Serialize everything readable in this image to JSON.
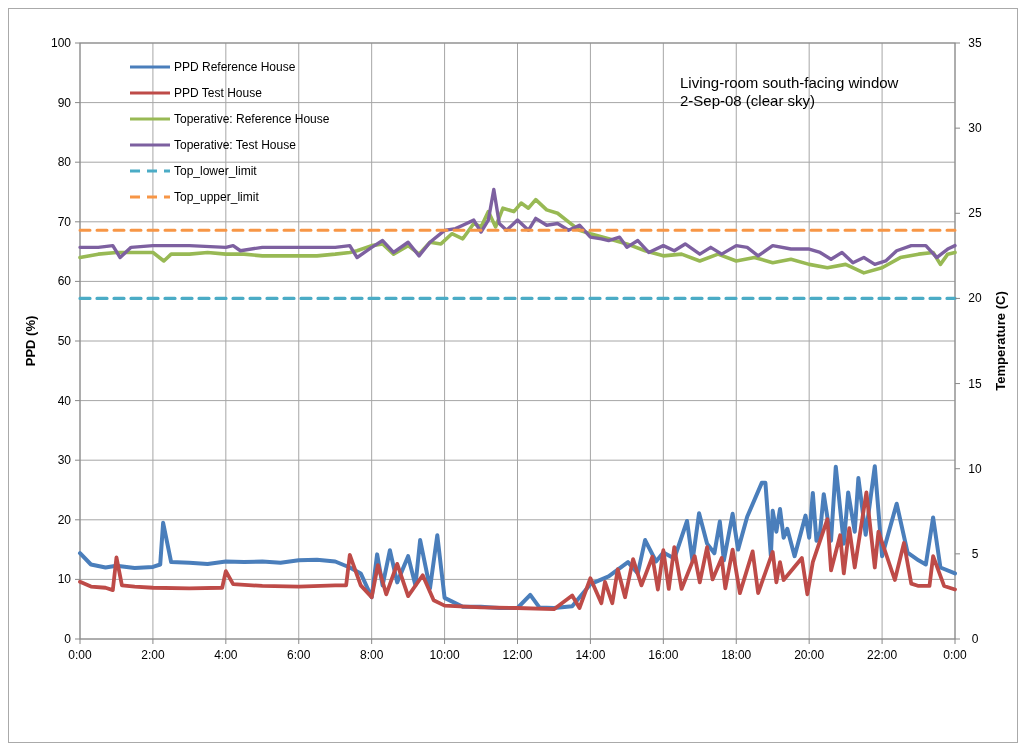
{
  "chart_data": {
    "type": "line",
    "title": "Living-room south-facing window",
    "subtitle": "2-Sep-08 (clear sky)",
    "ylabel": "PPD (%)",
    "y2label": "Temperature (C)",
    "xlim": [
      0,
      24
    ],
    "xticks": [
      {
        "value": 0,
        "label": "0:00"
      },
      {
        "value": 2,
        "label": "2:00"
      },
      {
        "value": 4,
        "label": "4:00"
      },
      {
        "value": 6,
        "label": "6:00"
      },
      {
        "value": 8,
        "label": "8:00"
      },
      {
        "value": 10,
        "label": "10:00"
      },
      {
        "value": 12,
        "label": "12:00"
      },
      {
        "value": 14,
        "label": "14:00"
      },
      {
        "value": 16,
        "label": "16:00"
      },
      {
        "value": 18,
        "label": "18:00"
      },
      {
        "value": 20,
        "label": "20:00"
      },
      {
        "value": 22,
        "label": "22:00"
      },
      {
        "value": 24,
        "label": "0:00"
      }
    ],
    "ylim": [
      0,
      100
    ],
    "yticks": [
      0,
      10,
      20,
      30,
      40,
      50,
      60,
      70,
      80,
      90,
      100
    ],
    "y2lim": [
      0,
      35
    ],
    "y2ticks": [
      0,
      5,
      10,
      15,
      20,
      25,
      30,
      35
    ],
    "grid": true,
    "legend": "top left",
    "marker": "none",
    "series": [
      {
        "name": "PPD Reference House",
        "color": "#4a7ebb",
        "x": [
          0,
          0.3,
          0.7,
          1,
          1.5,
          2,
          2.2,
          2.28,
          2.5,
          3,
          3.5,
          4,
          4.5,
          5,
          5.5,
          6,
          6.5,
          7,
          7.4,
          7.7,
          8,
          8.15,
          8.3,
          8.5,
          8.7,
          9,
          9.2,
          9.33,
          9.6,
          9.8,
          10,
          10.5,
          11,
          11.5,
          12,
          12.35,
          12.6,
          13,
          13.5,
          14,
          14.5,
          15.03,
          15.3,
          15.5,
          15.8,
          16,
          16.3,
          16.65,
          16.8,
          16.98,
          17.2,
          17.4,
          17.55,
          17.66,
          17.9,
          18.05,
          18.3,
          18.7,
          18.8,
          18.95,
          19,
          19.1,
          19.2,
          19.3,
          19.4,
          19.6,
          19.9,
          20,
          20.1,
          20.2,
          20.3,
          20.4,
          20.6,
          20.73,
          20.95,
          21.07,
          21.25,
          21.35,
          21.55,
          21.8,
          22,
          22.4,
          22.7,
          23,
          23.2,
          23.4,
          23.6,
          24
        ],
        "values": [
          14.4,
          12.5,
          12.0,
          12.3,
          11.9,
          12.1,
          12.5,
          19.5,
          12.9,
          12.8,
          12.6,
          13.0,
          12.9,
          13.0,
          12.8,
          13.2,
          13.3,
          13.0,
          12.0,
          11.0,
          7.0,
          14.2,
          9.0,
          14.9,
          9.5,
          13.9,
          9.0,
          16.6,
          8.5,
          17.4,
          6.9,
          5.4,
          5.4,
          5.2,
          5.2,
          7.4,
          5.3,
          5.2,
          5.5,
          9.2,
          10.5,
          12.9,
          11.0,
          16.6,
          13.0,
          14.5,
          13.5,
          19.8,
          13.1,
          21.1,
          16.0,
          14.4,
          19.7,
          13.2,
          21.0,
          15.0,
          20.5,
          26.2,
          26.2,
          13.9,
          21.5,
          18.0,
          21.8,
          17.0,
          18.5,
          13.9,
          20.7,
          17.0,
          24.5,
          16.5,
          18.0,
          24.3,
          16.5,
          28.9,
          16.0,
          24.6,
          18.0,
          27.0,
          17.5,
          29.0,
          13.9,
          22.7,
          14.5,
          13.2,
          12.5,
          20.4,
          12.0,
          11.0
        ]
      },
      {
        "name": "PPD Test House",
        "color": "#be4b48",
        "x": [
          0,
          0.3,
          0.7,
          0.9,
          1.0,
          1.15,
          1.5,
          2,
          3,
          3.9,
          4.0,
          4.2,
          5,
          6,
          7,
          7.3,
          7.4,
          7.7,
          8,
          8.17,
          8.4,
          8.7,
          9.0,
          9.4,
          9.7,
          10,
          11,
          12,
          13,
          13.5,
          13.7,
          14.0,
          14.3,
          14.4,
          14.6,
          14.75,
          14.95,
          15.17,
          15.4,
          15.7,
          15.85,
          16.0,
          16.15,
          16.3,
          16.5,
          16.86,
          17.0,
          17.2,
          17.35,
          17.6,
          17.7,
          17.9,
          18.1,
          18.45,
          18.6,
          19.0,
          19.1,
          19.2,
          19.3,
          19.8,
          19.95,
          20.1,
          20.5,
          20.6,
          20.85,
          20.95,
          21.1,
          21.25,
          21.57,
          21.8,
          21.9,
          22.35,
          22.6,
          22.8,
          23.0,
          23.3,
          23.4,
          23.7,
          24
        ],
        "values": [
          9.6,
          8.8,
          8.6,
          8.2,
          13.7,
          9.0,
          8.8,
          8.6,
          8.5,
          8.6,
          11.4,
          9.2,
          8.9,
          8.8,
          9.0,
          9.0,
          14.1,
          9.0,
          7.0,
          12.4,
          7.5,
          12.6,
          7.2,
          10.7,
          6.5,
          5.6,
          5.3,
          5.2,
          5.0,
          7.3,
          5.2,
          10.2,
          6.0,
          9.6,
          6.0,
          11.7,
          7.0,
          13.4,
          9.0,
          13.8,
          8.3,
          14.9,
          8.4,
          15.4,
          8.4,
          13.9,
          9.5,
          15.4,
          10.0,
          13.6,
          8.5,
          15.0,
          7.7,
          14.7,
          7.7,
          14.6,
          9.5,
          12.9,
          9.9,
          13.6,
          7.5,
          12.9,
          20.1,
          11.5,
          17.4,
          11.0,
          18.6,
          12.0,
          24.6,
          12.0,
          18.0,
          9.9,
          16.1,
          9.3,
          8.9,
          8.9,
          13.9,
          8.9,
          8.3
        ]
      },
      {
        "name": "Toperative: Reference House",
        "axis": "y2",
        "color": "#98b954",
        "x": [
          0,
          0.5,
          1,
          1.5,
          2,
          2.3,
          2.5,
          3,
          3.5,
          4,
          4.5,
          5,
          5.5,
          6,
          6.5,
          7,
          7.4,
          7.6,
          8,
          8.3,
          8.6,
          9,
          9.3,
          9.6,
          9.9,
          10.2,
          10.5,
          10.8,
          11,
          11.2,
          11.4,
          11.6,
          11.9,
          12.1,
          12.3,
          12.5,
          12.8,
          13.1,
          13.4,
          13.7,
          14,
          14.5,
          15,
          15.5,
          16,
          16.5,
          17,
          17.5,
          18,
          18.5,
          19,
          19.5,
          20,
          20.5,
          21,
          21.5,
          22,
          22.5,
          23,
          23.4,
          23.6,
          23.8,
          24
        ],
        "values": [
          22.4,
          22.6,
          22.7,
          22.7,
          22.7,
          22.2,
          22.6,
          22.6,
          22.7,
          22.6,
          22.6,
          22.5,
          22.5,
          22.5,
          22.5,
          22.6,
          22.7,
          22.8,
          23.1,
          23.2,
          22.6,
          23.1,
          22.6,
          23.3,
          23.2,
          23.8,
          23.5,
          24.4,
          24.2,
          25.1,
          24.2,
          25.3,
          25.1,
          25.6,
          25.3,
          25.8,
          25.2,
          25.0,
          24.5,
          24.0,
          23.8,
          23.5,
          23.2,
          22.8,
          22.5,
          22.6,
          22.2,
          22.6,
          22.2,
          22.4,
          22.1,
          22.3,
          22.0,
          21.8,
          22.0,
          21.5,
          21.8,
          22.4,
          22.6,
          22.7,
          22.0,
          22.6,
          22.7
        ]
      },
      {
        "name": "Toperative: Test House",
        "axis": "y2",
        "color": "#7d60a0",
        "x": [
          0,
          0.5,
          0.9,
          1.1,
          1.4,
          2,
          3,
          4,
          4.2,
          4.4,
          5,
          6,
          7,
          7.4,
          7.6,
          8,
          8.3,
          8.6,
          9,
          9.3,
          9.6,
          10,
          10.3,
          10.5,
          10.8,
          11,
          11.2,
          11.35,
          11.5,
          11.7,
          12,
          12.3,
          12.5,
          12.8,
          13.1,
          13.4,
          13.7,
          14,
          14.3,
          14.5,
          14.8,
          15,
          15.3,
          15.6,
          16,
          16.3,
          16.6,
          17,
          17.3,
          17.6,
          18,
          18.3,
          18.6,
          19,
          19.5,
          20,
          20.3,
          20.6,
          20.9,
          21.2,
          21.5,
          21.8,
          22.1,
          22.4,
          22.8,
          23.2,
          23.5,
          23.8,
          24
        ],
        "values": [
          23.0,
          23.0,
          23.1,
          22.4,
          23.0,
          23.1,
          23.1,
          23.0,
          23.1,
          22.8,
          23.0,
          23.0,
          23.0,
          23.1,
          22.4,
          23.0,
          23.4,
          22.7,
          23.3,
          22.5,
          23.3,
          24.0,
          24.1,
          24.3,
          24.6,
          23.9,
          24.6,
          26.4,
          24.4,
          24.0,
          24.6,
          24.0,
          24.7,
          24.3,
          24.4,
          24.0,
          24.3,
          23.6,
          23.5,
          23.4,
          23.6,
          23.0,
          23.4,
          22.7,
          23.1,
          22.8,
          23.2,
          22.6,
          23.0,
          22.6,
          23.1,
          23.0,
          22.5,
          23.1,
          22.9,
          22.9,
          22.7,
          22.3,
          22.7,
          22.1,
          22.4,
          22.0,
          22.2,
          22.8,
          23.1,
          23.1,
          22.4,
          22.9,
          23.1
        ]
      },
      {
        "name": "Top_lower_limit",
        "axis": "y2",
        "color": "#4bacc6",
        "line_style": "dashed",
        "x": [
          0,
          24
        ],
        "values": [
          20,
          20
        ]
      },
      {
        "name": "Top_upper_limit",
        "axis": "y2",
        "color": "#f79646",
        "line_style": "dashed",
        "x": [
          0,
          24
        ],
        "values": [
          24,
          24
        ]
      }
    ]
  }
}
